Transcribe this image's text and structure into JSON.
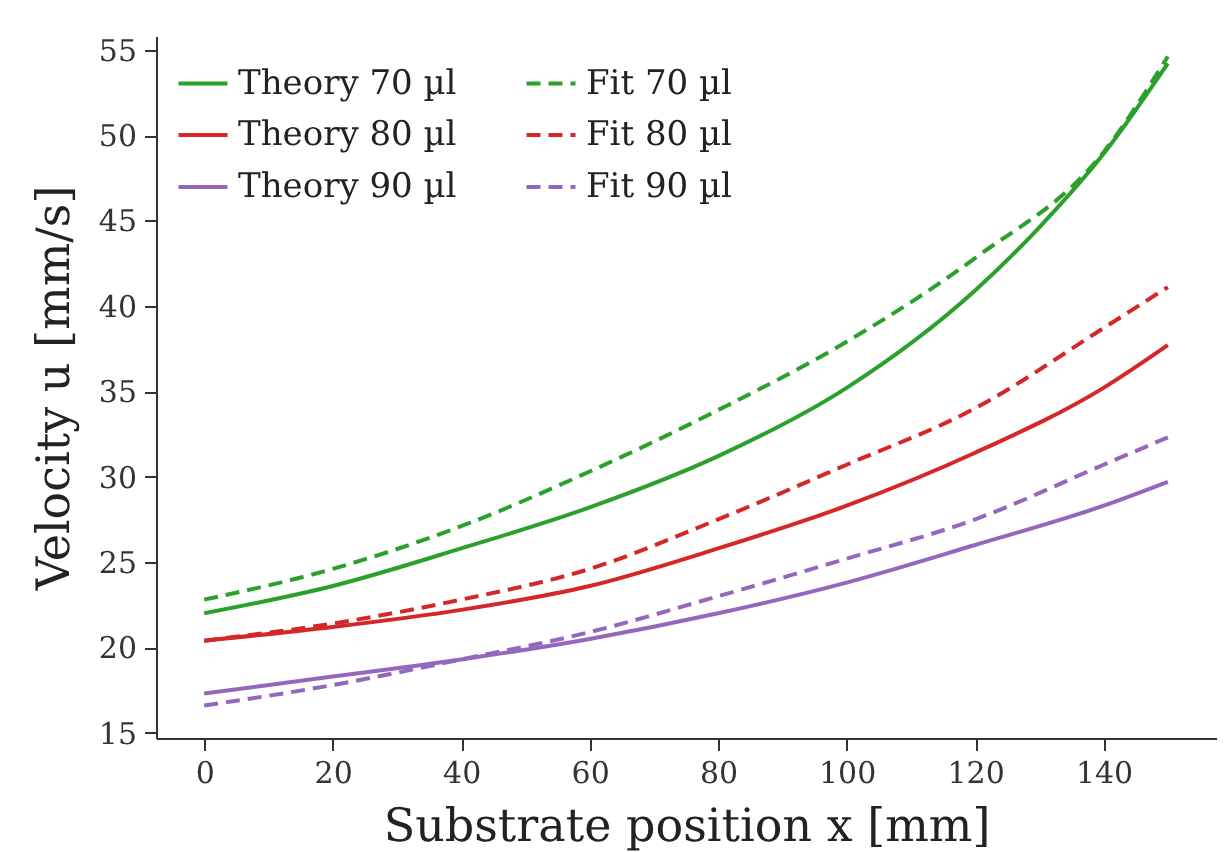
{
  "chart_data": {
    "type": "line",
    "xlabel": "Substrate position x [mm]",
    "ylabel": "Velocity u [mm/s]",
    "xlim": [
      -7.5,
      157.5
    ],
    "ylim": [
      14.7,
      55.8
    ],
    "xticks": [
      0,
      20,
      40,
      60,
      80,
      100,
      120,
      140
    ],
    "yticks": [
      15,
      20,
      25,
      30,
      35,
      40,
      45,
      50,
      55
    ],
    "grid": false,
    "legend": "top left",
    "marker": "none",
    "series": [
      {
        "name": "Theory 70 µl",
        "color": "#2ca02c",
        "line_style": "solid",
        "x": [
          0,
          20,
          40,
          60,
          80,
          100,
          120,
          130,
          140,
          150
        ],
        "values": [
          22.0,
          23.6,
          25.8,
          28.2,
          31.2,
          35.2,
          40.9,
          44.6,
          48.9,
          54.2
        ]
      },
      {
        "name": "Theory 80 µl",
        "color": "#d62728",
        "line_style": "solid",
        "x": [
          0,
          20,
          40,
          60,
          80,
          100,
          120,
          140,
          150
        ],
        "values": [
          20.4,
          21.2,
          22.2,
          23.6,
          25.8,
          28.3,
          31.4,
          35.2,
          37.7
        ]
      },
      {
        "name": "Theory 90 µl",
        "color": "#9467bd",
        "line_style": "solid",
        "x": [
          0,
          20,
          40,
          60,
          80,
          100,
          120,
          140,
          150
        ],
        "values": [
          17.3,
          18.3,
          19.3,
          20.5,
          22.0,
          23.8,
          26.0,
          28.3,
          29.7
        ]
      },
      {
        "name": "Fit 70 µl",
        "color": "#2ca02c",
        "line_style": "dashed",
        "x": [
          0,
          20,
          40,
          60,
          80,
          100,
          120,
          140,
          150
        ],
        "values": [
          22.8,
          24.6,
          27.1,
          30.3,
          33.9,
          37.9,
          42.8,
          49.0,
          54.6
        ]
      },
      {
        "name": "Fit 80 µl",
        "color": "#d62728",
        "line_style": "dashed",
        "x": [
          0,
          20,
          40,
          60,
          80,
          100,
          120,
          140,
          150
        ],
        "values": [
          20.4,
          21.4,
          22.8,
          24.6,
          27.5,
          30.7,
          34.0,
          38.7,
          41.1
        ]
      },
      {
        "name": "Fit 90 µl",
        "color": "#9467bd",
        "line_style": "dashed",
        "x": [
          0,
          20,
          40,
          60,
          80,
          100,
          120,
          140,
          150
        ],
        "values": [
          16.6,
          17.8,
          19.3,
          20.9,
          23.0,
          25.2,
          27.5,
          30.7,
          32.3
        ]
      }
    ]
  }
}
